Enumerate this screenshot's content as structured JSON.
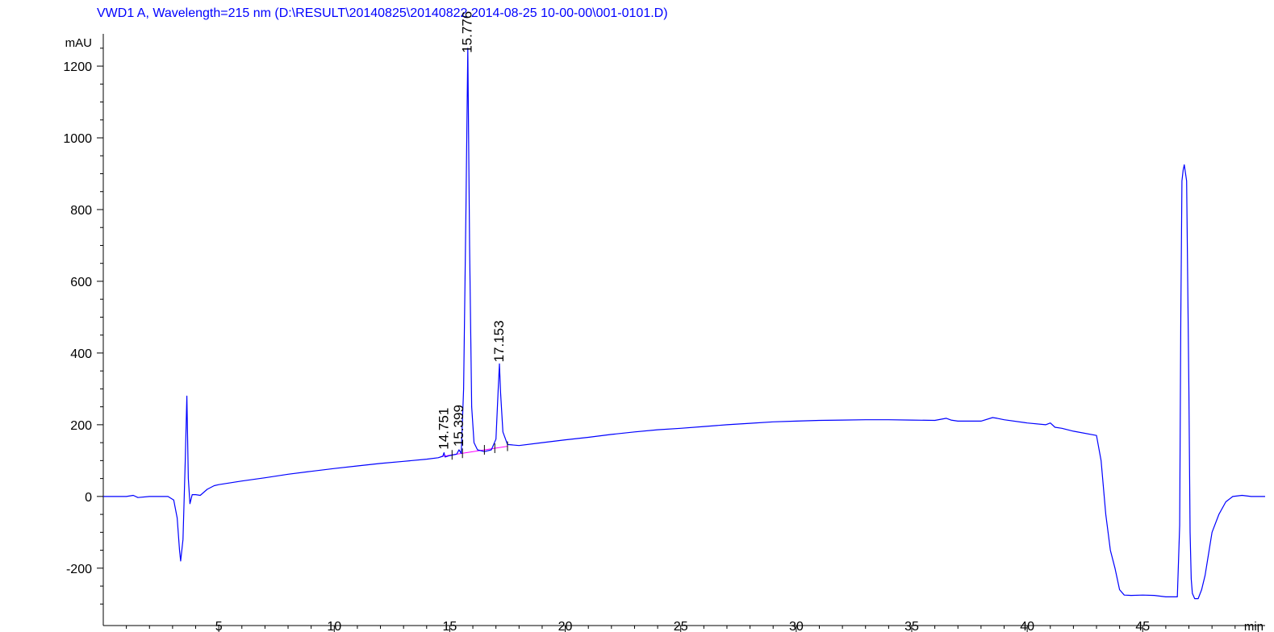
{
  "chart_data": {
    "type": "line",
    "title": "VWD1 A, Wavelength=215 nm (D:\\RESULT\\20140825\\20140822 2014-08-25 10-00-00\\001-0101.D)",
    "ylabel": "mAU",
    "xlabel": "min",
    "xlim": [
      0,
      50.3
    ],
    "ylim": [
      -360,
      1290
    ],
    "x_ticks": [
      5,
      10,
      15,
      20,
      25,
      30,
      35,
      40,
      45
    ],
    "x_tick_labels": [
      "5",
      "10",
      "15",
      "20",
      "25",
      "30",
      "35",
      "40",
      "45"
    ],
    "y_ticks": [
      -200,
      0,
      200,
      400,
      600,
      800,
      1000,
      1200
    ],
    "y_tick_labels": [
      "-200",
      "0",
      "200",
      "400",
      "600",
      "800",
      "1000",
      "1200"
    ],
    "colors": {
      "signal": "#0000ff",
      "baseline": "#ff00ff",
      "title": "#0000ff",
      "axis": "#000000"
    },
    "series": [
      {
        "x": [
          0,
          1,
          1.3,
          1.5,
          2,
          2.5,
          2.8,
          3.05,
          3.2,
          3.3,
          3.35,
          3.45,
          3.55,
          3.62,
          3.68,
          3.75,
          3.85,
          4.0,
          4.2,
          4.5,
          4.8,
          5,
          6,
          7,
          8,
          9,
          10,
          11,
          12,
          13,
          14,
          14.5,
          14.7,
          14.75,
          14.8,
          15.0,
          15.3,
          15.4,
          15.5,
          15.6,
          15.7,
          15.78,
          15.86,
          15.95,
          16.05,
          16.2,
          16.5,
          16.8,
          17.0,
          17.1,
          17.15,
          17.2,
          17.3,
          17.5,
          18,
          19,
          20,
          21,
          22,
          23,
          24,
          25,
          26,
          27,
          28,
          29,
          30,
          31,
          32,
          33,
          34,
          35,
          36,
          36.5,
          36.7,
          37,
          38,
          38.5,
          38.7,
          39,
          40,
          40.8,
          41,
          41.2,
          41.5,
          42,
          43,
          43.2,
          43.4,
          43.6,
          43.8,
          44.0,
          44.2,
          44.5,
          45,
          45.5,
          46,
          46.5,
          46.6,
          46.65,
          46.7,
          46.75,
          46.8,
          46.9,
          47.0,
          47.05,
          47.1,
          47.15,
          47.25,
          47.4,
          47.55,
          47.7,
          47.85,
          48.0,
          48.3,
          48.6,
          48.9,
          49.3,
          49.7,
          50.3
        ],
        "y": [
          0,
          0,
          3,
          -3,
          0,
          0,
          0,
          -10,
          -60,
          -150,
          -180,
          -120,
          100,
          280,
          50,
          -20,
          5,
          5,
          3,
          20,
          30,
          33,
          43,
          52,
          62,
          70,
          78,
          85,
          92,
          98,
          104,
          108,
          112,
          122,
          110,
          114,
          118,
          130,
          120,
          300,
          800,
          1250,
          700,
          250,
          150,
          130,
          125,
          130,
          160,
          300,
          370,
          290,
          180,
          145,
          142,
          150,
          158,
          165,
          173,
          180,
          186,
          190,
          195,
          200,
          204,
          208,
          210,
          212,
          213,
          214,
          214,
          213,
          212,
          218,
          213,
          210,
          210,
          220,
          218,
          214,
          205,
          200,
          205,
          193,
          190,
          182,
          170,
          100,
          -50,
          -150,
          -200,
          -260,
          -275,
          -276,
          -275,
          -276,
          -280,
          -280,
          -80,
          500,
          880,
          910,
          925,
          880,
          300,
          -100,
          -230,
          -270,
          -285,
          -285,
          -260,
          -220,
          -160,
          -100,
          -50,
          -15,
          0,
          3,
          0,
          0
        ],
        "color": "#0000ff"
      }
    ],
    "baseline": {
      "x": [
        14.6,
        17.5
      ],
      "y": [
        111,
        140
      ],
      "color": "#ff00ff"
    },
    "peaks": [
      {
        "rt": 14.751,
        "label": "14.751"
      },
      {
        "rt": 15.399,
        "label": "15.399"
      },
      {
        "rt": 15.776,
        "label": "15.776"
      },
      {
        "rt": 17.153,
        "label": "17.153"
      }
    ],
    "grid": false
  }
}
